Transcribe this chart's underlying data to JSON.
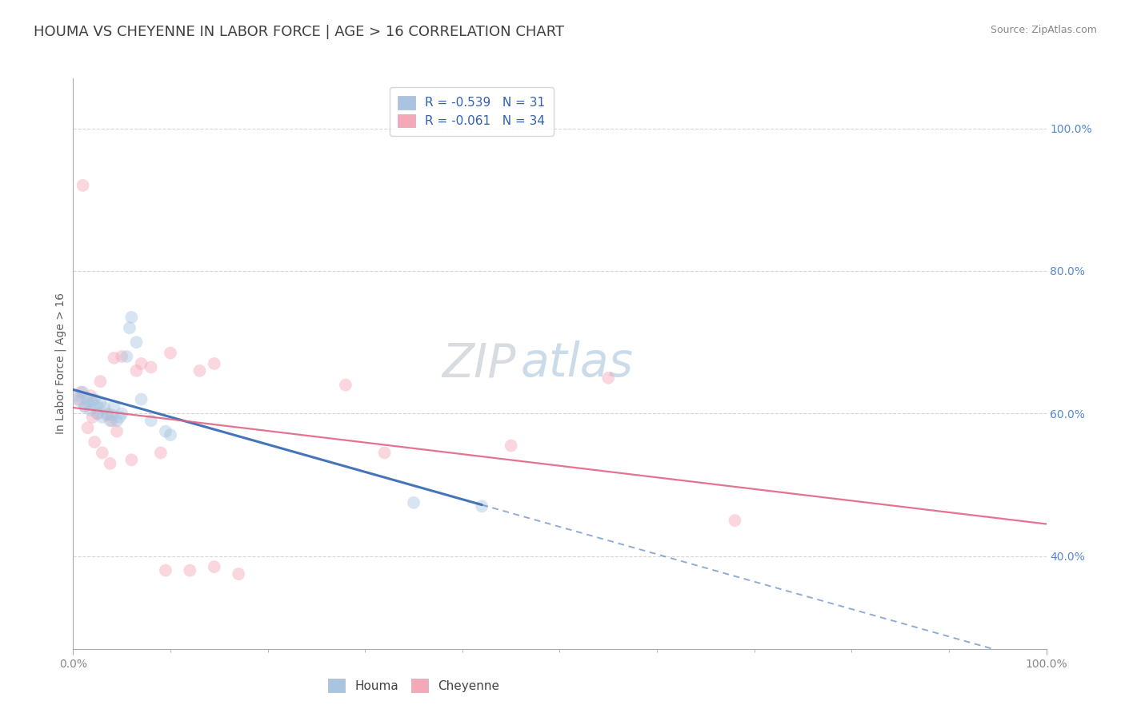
{
  "title": "HOUMA VS CHEYENNE IN LABOR FORCE | AGE > 16 CORRELATION CHART",
  "source_text": "Source: ZipAtlas.com",
  "ylabel": "In Labor Force | Age > 16",
  "houma_color": "#a8c4e0",
  "cheyenne_color": "#f4a8b8",
  "houma_line_color": "#3468b4",
  "cheyenne_line_color": "#e06080",
  "houma_R": -0.539,
  "houma_N": 31,
  "cheyenne_R": -0.061,
  "cheyenne_N": 34,
  "xlim": [
    0.0,
    1.0
  ],
  "ylim": [
    0.27,
    1.07
  ],
  "right_yticks": [
    0.4,
    0.6,
    0.8,
    1.0
  ],
  "right_yticklabels": [
    "40.0%",
    "60.0%",
    "80.0%",
    "100.0%"
  ],
  "xticks": [
    0.0,
    1.0
  ],
  "xticklabels": [
    "0.0%",
    "100.0%"
  ],
  "background_color": "#ffffff",
  "grid_color": "#cccccc",
  "watermark_zip": "ZIP",
  "watermark_atlas": "atlas",
  "houma_x": [
    0.005,
    0.007,
    0.01,
    0.012,
    0.015,
    0.015,
    0.018,
    0.02,
    0.022,
    0.025,
    0.025,
    0.028,
    0.03,
    0.032,
    0.035,
    0.038,
    0.04,
    0.042,
    0.045,
    0.048,
    0.05,
    0.055,
    0.058,
    0.06,
    0.065,
    0.07,
    0.08,
    0.095,
    0.1,
    0.35,
    0.42
  ],
  "houma_y": [
    0.625,
    0.618,
    0.63,
    0.61,
    0.615,
    0.62,
    0.605,
    0.615,
    0.62,
    0.6,
    0.61,
    0.615,
    0.595,
    0.608,
    0.6,
    0.59,
    0.598,
    0.61,
    0.59,
    0.595,
    0.6,
    0.68,
    0.72,
    0.735,
    0.7,
    0.62,
    0.59,
    0.575,
    0.57,
    0.475,
    0.47
  ],
  "cheyenne_x": [
    0.005,
    0.008,
    0.01,
    0.012,
    0.015,
    0.018,
    0.02,
    0.022,
    0.025,
    0.028,
    0.03,
    0.035,
    0.038,
    0.04,
    0.042,
    0.045,
    0.05,
    0.06,
    0.065,
    0.07,
    0.08,
    0.09,
    0.095,
    0.1,
    0.12,
    0.13,
    0.145,
    0.145,
    0.17,
    0.28,
    0.32,
    0.45,
    0.55,
    0.68
  ],
  "cheyenne_y": [
    0.62,
    0.63,
    0.92,
    0.61,
    0.58,
    0.625,
    0.595,
    0.56,
    0.6,
    0.645,
    0.545,
    0.598,
    0.53,
    0.59,
    0.678,
    0.575,
    0.68,
    0.535,
    0.66,
    0.67,
    0.665,
    0.545,
    0.38,
    0.685,
    0.38,
    0.66,
    0.67,
    0.385,
    0.375,
    0.64,
    0.545,
    0.555,
    0.65,
    0.45
  ],
  "title_fontsize": 13,
  "label_fontsize": 10,
  "tick_fontsize": 10,
  "source_fontsize": 9,
  "legend_fontsize": 11,
  "watermark_fontsize": 42,
  "marker_size": 130,
  "marker_alpha": 0.45,
  "title_color": "#404040",
  "axis_label_color": "#606060",
  "tick_color": "#888888",
  "source_color": "#888888",
  "right_tick_color": "#5588cc",
  "legend_text_color": "#3060b0"
}
